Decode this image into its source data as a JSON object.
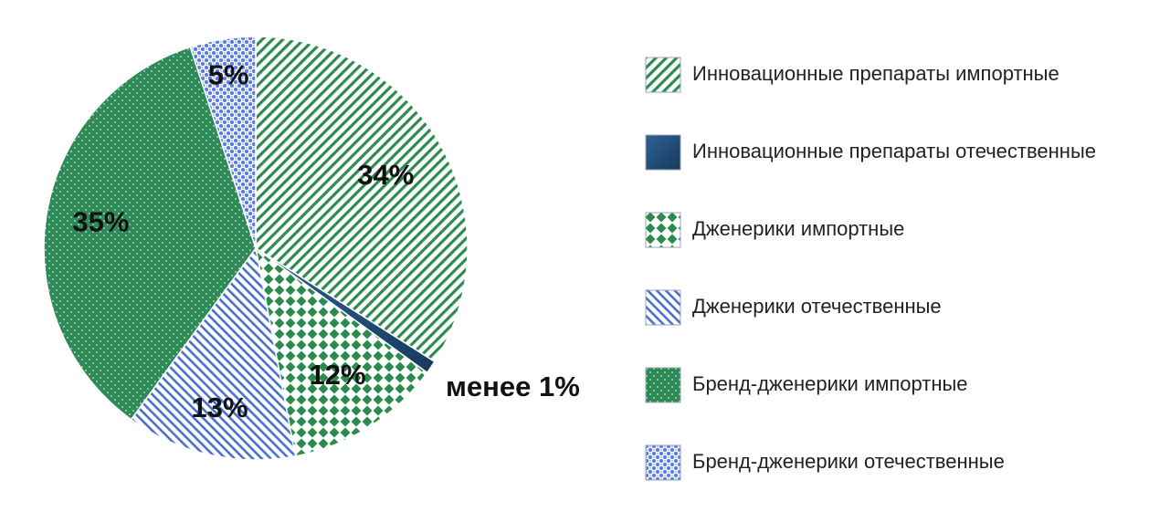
{
  "chart_data": {
    "type": "pie",
    "slices": [
      {
        "name": "Инновационные препараты импортные",
        "value": 34,
        "label": "34%",
        "pattern": "diag-stripe-green",
        "color": "#2e8b4f"
      },
      {
        "name": "Инновационные препараты отечественные",
        "value": 1,
        "label": "менее 1%",
        "pattern": "solid-navy",
        "color": "#1f4e79"
      },
      {
        "name": "Дженерики импортные",
        "value": 12,
        "label": "12%",
        "pattern": "diamond-green",
        "color": "#2e8b4f"
      },
      {
        "name": "Дженерики отечественные",
        "value": 13,
        "label": "13%",
        "pattern": "diag-stripe-blue",
        "color": "#4a6fd0"
      },
      {
        "name": "Бренд-дженерики импортные",
        "value": 35,
        "label": "35%",
        "pattern": "dotted-green",
        "color": "#2e8b57"
      },
      {
        "name": "Бренд-дженерики отечественные",
        "value": 5,
        "label": "5%",
        "pattern": "check-blue",
        "color": "#5a7fe0"
      }
    ],
    "legend_position": "right"
  }
}
